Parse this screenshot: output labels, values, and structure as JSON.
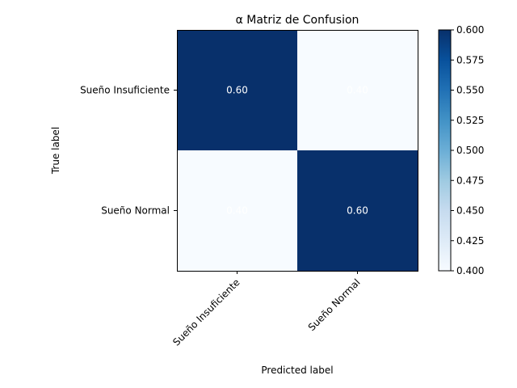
{
  "chart_data": {
    "type": "heatmap",
    "title": "α Matriz de Confusion",
    "xlabel": "Predicted label",
    "ylabel": "True label",
    "x_categories": [
      "Sueño Insuficiente",
      "Sueño Normal"
    ],
    "y_categories": [
      "Sueño Insuficiente",
      "Sueño Normal"
    ],
    "values": [
      [
        0.6,
        0.4
      ],
      [
        0.4,
        0.6
      ]
    ],
    "cell_labels": [
      [
        "0.60",
        "0.40"
      ],
      [
        "0.40",
        "0.60"
      ]
    ],
    "colormap": "Blues",
    "color_low": "#f7fbff",
    "color_high": "#08306b",
    "cell_text_color": "#ffffff",
    "colorbar": {
      "range": [
        0.4,
        0.6
      ],
      "ticks": [
        "0.400",
        "0.425",
        "0.450",
        "0.475",
        "0.500",
        "0.525",
        "0.550",
        "0.575",
        "0.600"
      ]
    }
  }
}
